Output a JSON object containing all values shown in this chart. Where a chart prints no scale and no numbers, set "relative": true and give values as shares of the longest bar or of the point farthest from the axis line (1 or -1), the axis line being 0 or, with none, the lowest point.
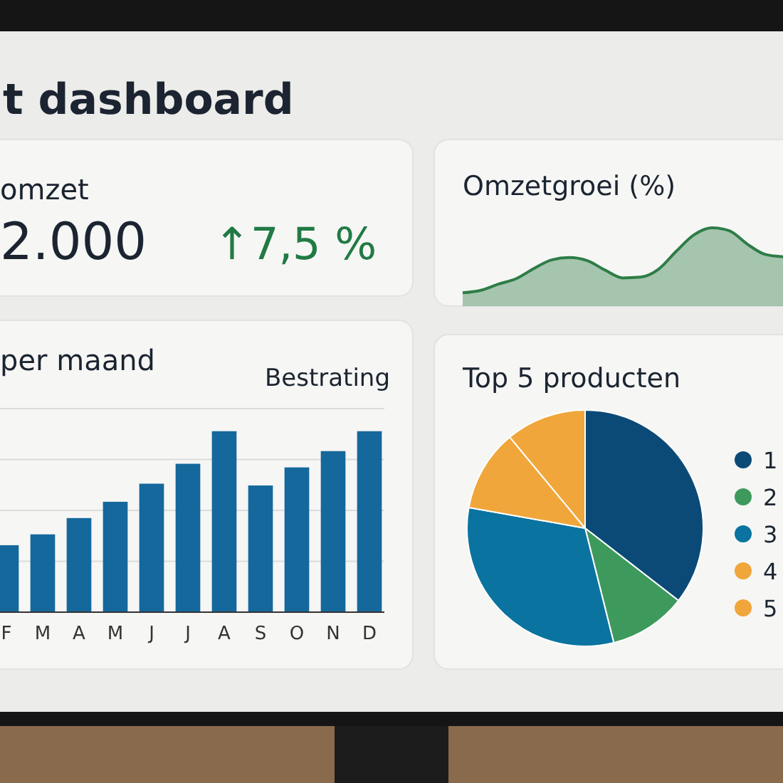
{
  "chart_data": [
    {
      "type": "other",
      "title": "t dashboard"
    },
    {
      "type": "other",
      "title": "omzet",
      "annotations": [
        "2.000",
        "↑7,5 %"
      ]
    },
    {
      "type": "area",
      "title": "Omzetgroei (%)",
      "relative": true,
      "color": "#2e7d46",
      "categories": [
        null,
        null,
        null,
        null,
        null,
        null,
        null,
        null,
        null,
        null,
        null,
        null,
        null,
        null,
        null,
        null,
        null,
        null,
        null
      ],
      "values": [
        0.17,
        0.2,
        0.28,
        0.35,
        0.48,
        0.59,
        0.62,
        0.58,
        0.46,
        0.36,
        0.37,
        0.47,
        0.7,
        0.91,
        1,
        0.96,
        0.79,
        0.66,
        0.63
      ]
    },
    {
      "type": "bar",
      "title": "per maand",
      "subtitle": "Bestrating",
      "relative": true,
      "grid": true,
      "color": "#15689c",
      "categories": [
        "F",
        "M",
        "A",
        "M",
        "J",
        "J",
        "A",
        "S",
        "O",
        "N",
        "D"
      ],
      "values": [
        0.37,
        0.43,
        0.52,
        0.61,
        0.71,
        0.82,
        1,
        0.7,
        0.8,
        0.89,
        1
      ]
    },
    {
      "type": "pie",
      "title": "Top 5 producten",
      "legend": "right",
      "categories": [
        "1",
        "2",
        "3",
        "4",
        "5"
      ],
      "values": [
        35.5,
        10.6,
        31.7,
        11.2,
        11.0
      ],
      "colors": [
        "#0b4a77",
        "#3d9a5c",
        "#0a73a0",
        "#f0a63a",
        "#f0a63a"
      ]
    }
  ]
}
